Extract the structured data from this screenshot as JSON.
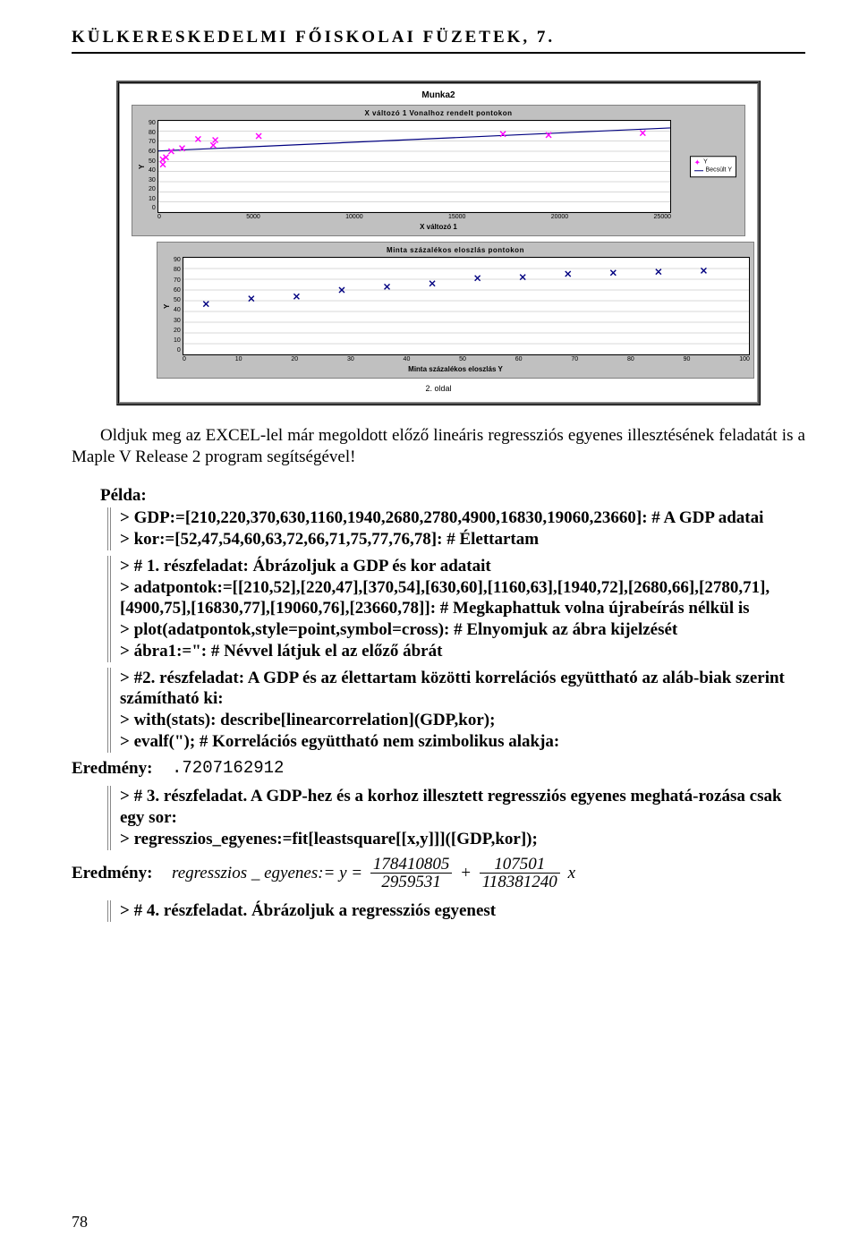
{
  "running_head": "KÜLKERESKEDELMI FŐISKOLAI FÜZETEK, 7.",
  "page_number": "78",
  "panel": {
    "title": "Munka2",
    "page_label": "2. oldal",
    "chart1": {
      "type": "scatter-with-trend",
      "title": "X változó 1 Vonalhoz rendelt pontokon",
      "y_label": "Y",
      "x_label": "X változó 1",
      "background_color": "#c0c0c0",
      "plot_color": "#ffffff",
      "grid_color": "#b0b0b0",
      "marker_color": "#ff00ff",
      "marker_style": "cross",
      "trend_color": "#000080",
      "xlim": [
        0,
        25000
      ],
      "xtick_step": 5000,
      "ylim": [
        0,
        90
      ],
      "yticks": [
        0,
        10,
        20,
        30,
        40,
        50,
        60,
        70,
        80,
        90
      ],
      "points": [
        [
          210,
          52
        ],
        [
          220,
          47
        ],
        [
          370,
          54
        ],
        [
          630,
          60
        ],
        [
          1160,
          63
        ],
        [
          1940,
          72
        ],
        [
          2680,
          66
        ],
        [
          2780,
          71
        ],
        [
          4900,
          75
        ],
        [
          16830,
          77
        ],
        [
          19060,
          76
        ],
        [
          23660,
          78
        ]
      ],
      "trend": {
        "slope": 0.000908,
        "intercept": 60.28
      },
      "legend": {
        "items": [
          "Y",
          "Becsült Y"
        ]
      }
    },
    "chart2": {
      "type": "scatter",
      "title": "Minta százalékos eloszlás pontokon",
      "y_label": "Y",
      "x_label": "Minta százalékos eloszlás Y",
      "background_color": "#c0c0c0",
      "plot_color": "#ffffff",
      "grid_color": "#b0b0b0",
      "marker_color": "#000080",
      "marker_style": "cross",
      "xlim": [
        0,
        100
      ],
      "xtick_step": 10,
      "ylim": [
        0,
        90
      ],
      "yticks": [
        0,
        10,
        20,
        30,
        40,
        50,
        60,
        70,
        80,
        90
      ],
      "points": [
        [
          4,
          47
        ],
        [
          12,
          52
        ],
        [
          20,
          54
        ],
        [
          28,
          60
        ],
        [
          36,
          63
        ],
        [
          44,
          66
        ],
        [
          52,
          71
        ],
        [
          60,
          72
        ],
        [
          68,
          75
        ],
        [
          76,
          76
        ],
        [
          84,
          77
        ],
        [
          92,
          78
        ]
      ]
    }
  },
  "body": {
    "para1": "Oldjuk meg az EXCEL-lel már megoldott előző lineáris regressziós egyenes illesztésének feladatát is a Maple V Release 2 program segítségével!",
    "pelda_label": "Példa:",
    "maple1_l1": "> GDP:=[210,220,370,630,1160,1940,2680,2780,4900,16830,19060,23660]: # A GDP adatai",
    "maple1_l2": "> kor:=[52,47,54,60,63,72,66,71,75,77,76,78]: # Élettartam",
    "maple2_l1": "> # 1. részfeladat: Ábrázoljuk a GDP és kor adatait",
    "maple2_l2": "> adatpontok:=[[210,52],[220,47],[370,54],[630,60],[1160,63],[1940,72],[2680,66],[2780,71],[4900,75],[16830,77],[19060,76],[23660,78]]: # Megkaphattuk volna újrabeírás nélkül is",
    "maple2_l3": "> plot(adatpontok,style=point,symbol=cross): # Elnyomjuk az ábra kijelzését",
    "maple2_l4": "> ábra1:=\": # Névvel látjuk el az előző ábrát",
    "maple3_l1": "> #2. részfeladat: A GDP és az élettartam közötti korrelációs együttható az aláb-biak  szerint számítható ki:",
    "maple3_l2": "> with(stats): describe[linearcorrelation](GDP,kor);",
    "maple3_l3": "> evalf(\"); # Korrelációs együttható nem szimbolikus alakja:",
    "result1_label": "Eredmény:",
    "result1_value": ".7207162912",
    "maple4_l1": "> # 3. részfeladat. A GDP-hez és a korhoz illesztett regressziós egyenes meghatá-rozása csak egy sor:",
    "maple4_l2": "> regresszios_egyenes:=fit[leastsquare[[x,y]]]([GDP,kor]);",
    "result2_label": "Eredmény:",
    "eq_lhs": "regresszios _ egyenes:= y =",
    "frac1_num": "178410805",
    "frac1_den": "2959531",
    "eq_plus": "+",
    "frac2_num": "107501",
    "frac2_den": "118381240",
    "eq_x": "x",
    "maple5_l1": "> # 4. részfeladat. Ábrázoljuk a regressziós egyenest"
  }
}
